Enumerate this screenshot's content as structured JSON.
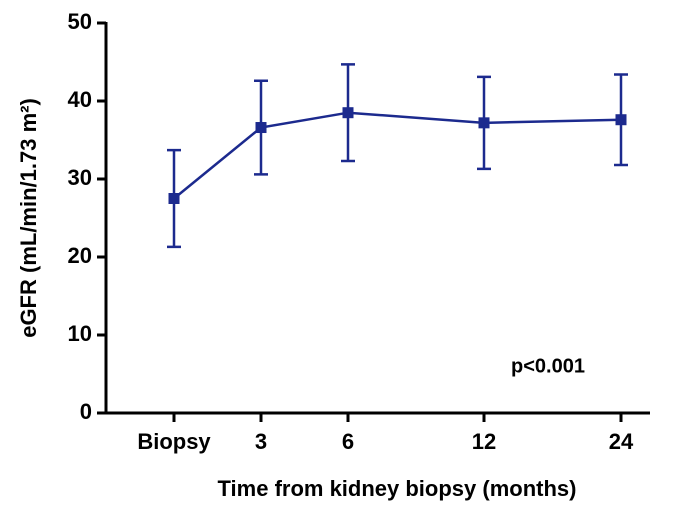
{
  "chart_data": {
    "type": "line",
    "x_label": "Time from kidney biopsy (months)",
    "y_label": "eGFR (mL/min/1.73 m²)",
    "annotation": "p<0.001",
    "categories": [
      "Biopsy",
      "3",
      "6",
      "12",
      "24"
    ],
    "series": [
      {
        "color": "#1c2a8e",
        "values": [
          27.5,
          36.6,
          38.5,
          37.2,
          37.6
        ],
        "errors": [
          6.2,
          6.0,
          6.2,
          5.9,
          5.8
        ]
      }
    ],
    "ylim": [
      0,
      50
    ],
    "yticks": [
      0,
      10,
      20,
      30,
      40,
      50
    ]
  }
}
